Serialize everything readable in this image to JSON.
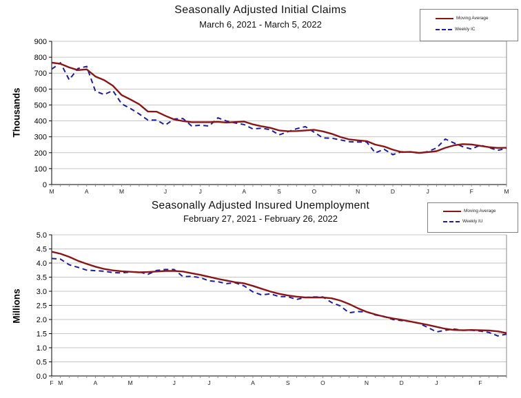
{
  "colors": {
    "moving_average": "#8B1515",
    "weekly": "#1A1AA6",
    "gridline": "#C6C6C6",
    "axis": "#000000",
    "plot_right_edge": "#8A8A8A"
  },
  "chart_data": [
    {
      "id": "initial_claims",
      "type": "line",
      "title": "Seasonally Adjusted Initial Claims",
      "subtitle": "March 6, 2021 - March 5, 2022",
      "ylabel": "Thousands",
      "ylim": [
        0,
        900
      ],
      "grid": "horizontal",
      "legend_position": "top-right",
      "ytick_labels": [
        "900",
        "800",
        "700",
        "600",
        "500",
        "400",
        "300",
        "200",
        "100",
        "0"
      ],
      "ytick_values": [
        900,
        800,
        700,
        600,
        500,
        400,
        300,
        200,
        100,
        0
      ],
      "xlabels": [
        "M",
        "A",
        "M",
        "J",
        "J",
        "A",
        "S",
        "O",
        "N",
        "D",
        "J",
        "F",
        "M"
      ],
      "xlabel_week_index": [
        0,
        4,
        8,
        13,
        17,
        22,
        26,
        30,
        35,
        39,
        43,
        48,
        52
      ],
      "legend": [
        {
          "label": "Moving Average",
          "style": "solid"
        },
        {
          "label": "Weekly IC",
          "style": "dashed"
        }
      ],
      "series": [
        {
          "name": "Moving Average",
          "values": [
            766,
            759,
            736,
            719,
            724,
            679,
            656,
            621,
            562,
            535,
            505,
            459,
            458,
            432,
            409,
            399,
            392,
            392,
            392,
            394,
            390,
            393,
            396,
            378,
            366,
            356,
            340,
            335,
            336,
            340,
            344,
            334,
            319,
            299,
            284,
            278,
            273,
            251,
            239,
            219,
            204,
            205,
            199,
            204,
            210,
            231,
            246,
            254,
            252,
            243,
            235,
            230,
            231
          ]
        },
        {
          "name": "Weekly IC",
          "values": [
            725,
            765,
            658,
            729,
            742,
            586,
            566,
            590,
            507,
            478,
            444,
            405,
            405,
            374,
            412,
            415,
            368,
            373,
            368,
            419,
            399,
            387,
            377,
            349,
            354,
            345,
            312,
            332,
            351,
            364,
            329,
            293,
            291,
            281,
            269,
            267,
            268,
            199,
            222,
            188,
            206,
            205,
            198,
            207,
            230,
            286,
            261,
            238,
            223,
            248,
            232,
            215,
            227
          ]
        }
      ]
    },
    {
      "id": "insured_unemployment",
      "type": "line",
      "title": "Seasonally Adjusted Insured Unemployment",
      "subtitle": "February 27, 2021 - February 26, 2022",
      "ylabel": "Millions",
      "ylim": [
        0,
        5
      ],
      "grid": "horizontal",
      "legend_position": "top-right",
      "ytick_labels": [
        "5.0",
        "4.5",
        "4.0",
        "3.5",
        "3.0",
        "2.5",
        "2.0",
        "1.5",
        "1.0",
        "0.5",
        "0.0"
      ],
      "ytick_values": [
        5,
        4.5,
        4,
        3.5,
        3,
        2.5,
        2,
        1.5,
        1,
        0.5,
        0
      ],
      "xlabels": [
        "F",
        "M",
        "A",
        "M",
        "J",
        "J",
        "A",
        "S",
        "O",
        "N",
        "D",
        "J",
        "F"
      ],
      "xlabel_week_index": [
        0,
        1,
        5,
        9,
        14,
        18,
        23,
        27,
        31,
        36,
        40,
        44,
        49
      ],
      "legend": [
        {
          "label": "Moving Average",
          "style": "solid"
        },
        {
          "label": "Weekly IU",
          "style": "dashed"
        }
      ],
      "series": [
        {
          "name": "Moving Average",
          "values": [
            4.4,
            4.33,
            4.22,
            4.08,
            3.97,
            3.87,
            3.79,
            3.74,
            3.71,
            3.69,
            3.67,
            3.68,
            3.7,
            3.72,
            3.72,
            3.7,
            3.64,
            3.58,
            3.51,
            3.44,
            3.38,
            3.32,
            3.28,
            3.19,
            3.09,
            2.99,
            2.91,
            2.85,
            2.81,
            2.78,
            2.78,
            2.78,
            2.75,
            2.67,
            2.55,
            2.4,
            2.27,
            2.18,
            2.1,
            2.04,
            1.99,
            1.93,
            1.87,
            1.81,
            1.74,
            1.67,
            1.63,
            1.62,
            1.63,
            1.62,
            1.61,
            1.58,
            1.52
          ]
        },
        {
          "name": "Weekly IU",
          "values": [
            4.16,
            4.14,
            3.94,
            3.85,
            3.75,
            3.73,
            3.71,
            3.66,
            3.65,
            3.68,
            3.69,
            3.6,
            3.74,
            3.77,
            3.77,
            3.52,
            3.53,
            3.48,
            3.37,
            3.34,
            3.27,
            3.3,
            3.19,
            2.98,
            2.87,
            2.91,
            2.81,
            2.81,
            2.71,
            2.78,
            2.8,
            2.8,
            2.6,
            2.48,
            2.24,
            2.28,
            2.27,
            2.16,
            2.11,
            2.0,
            1.96,
            1.93,
            1.86,
            1.72,
            1.56,
            1.62,
            1.66,
            1.62,
            1.62,
            1.59,
            1.54,
            1.42,
            1.48
          ]
        }
      ]
    }
  ]
}
